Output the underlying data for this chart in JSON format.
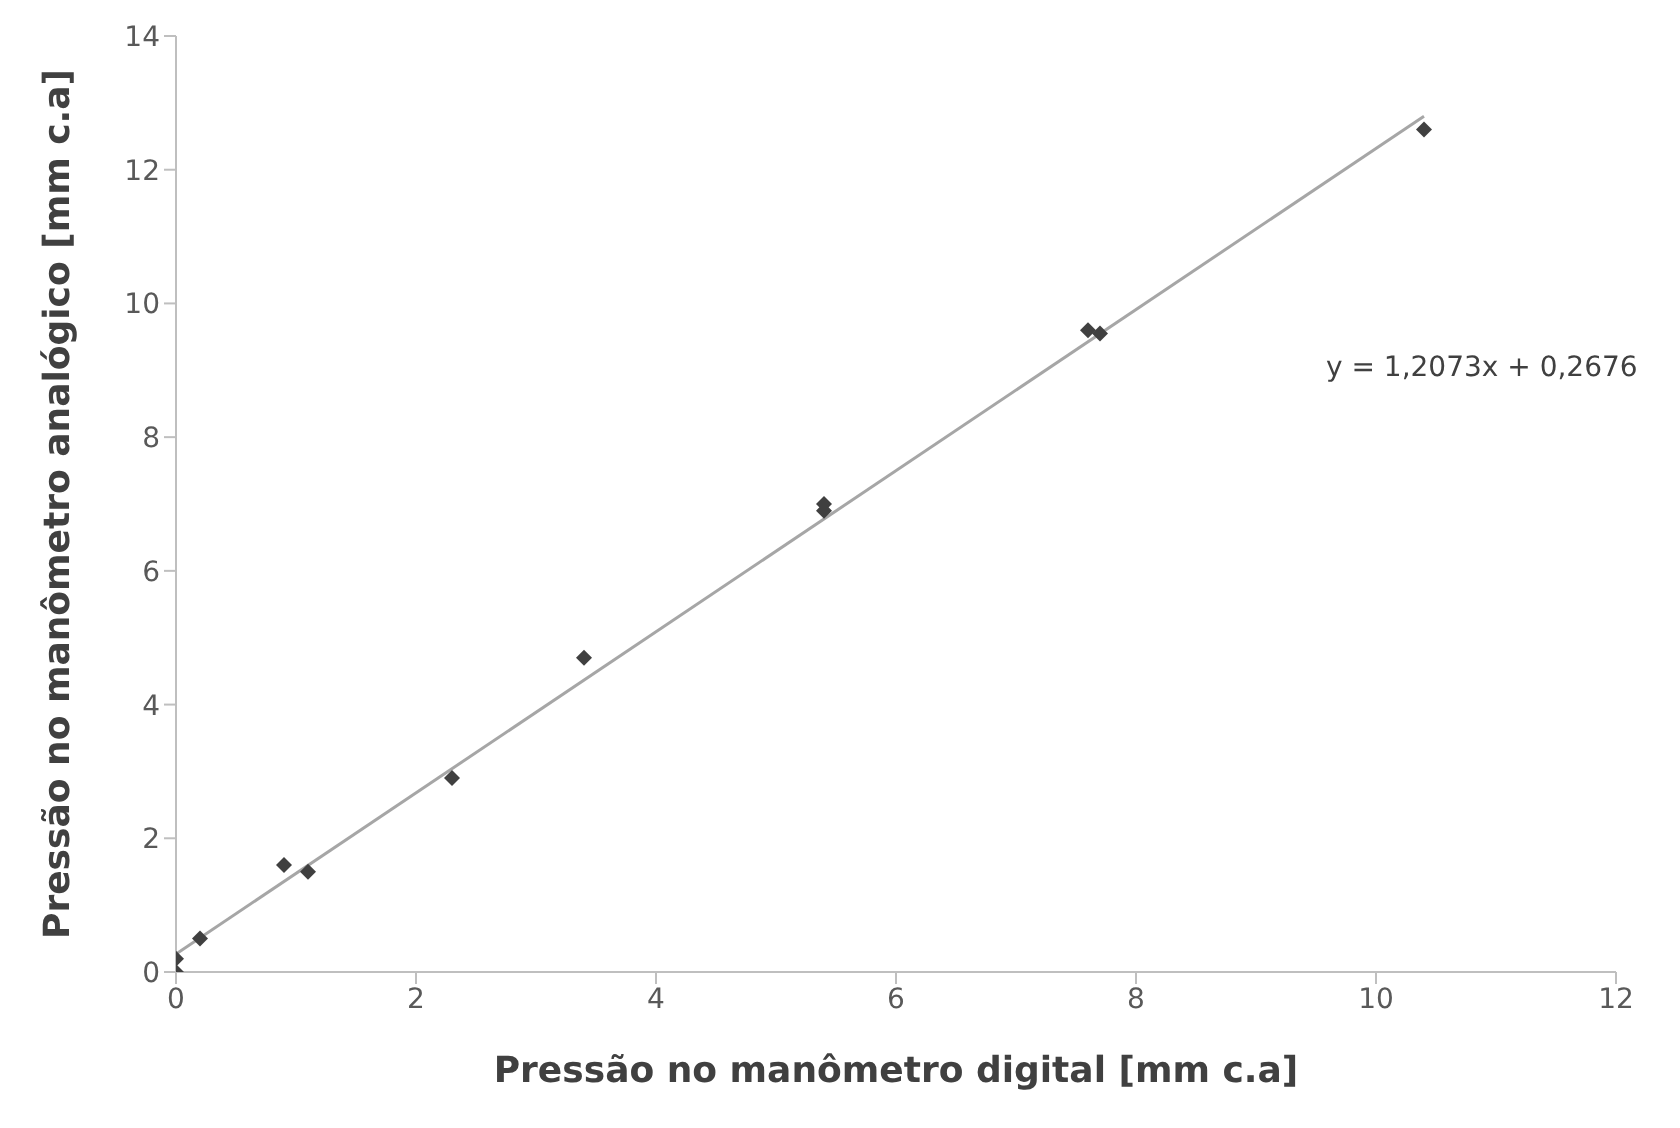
{
  "chart_data": {
    "type": "scatter",
    "xlabel": "Pressão no manômetro digital [mm c.a]",
    "ylabel": "Pressão no manômetro analógico [mm c.a]",
    "xlim": [
      0,
      12
    ],
    "xticks": [
      0,
      2,
      4,
      6,
      8,
      10,
      12
    ],
    "ylim": [
      0,
      14
    ],
    "yticks": [
      0,
      2,
      4,
      6,
      8,
      10,
      12,
      14
    ],
    "grid": false,
    "legend": false,
    "series": [
      {
        "marker": "diamond",
        "color": "#404040",
        "x": [
          0,
          0,
          0.2,
          0.9,
          1.1,
          2.3,
          3.4,
          5.4,
          5.4,
          7.6,
          7.7,
          10.4
        ],
        "values": [
          0,
          0.2,
          0.5,
          1.6,
          1.5,
          2.9,
          4.7,
          6.9,
          7.0,
          9.6,
          9.55,
          12.6
        ]
      },
      {
        "type": "line",
        "marker": "none",
        "color": "#a6a6a6",
        "x": [
          0,
          10.4
        ],
        "values": [
          0.27,
          12.8
        ]
      }
    ],
    "annotations": [
      "y = 1,2073x + 0,2676"
    ]
  }
}
